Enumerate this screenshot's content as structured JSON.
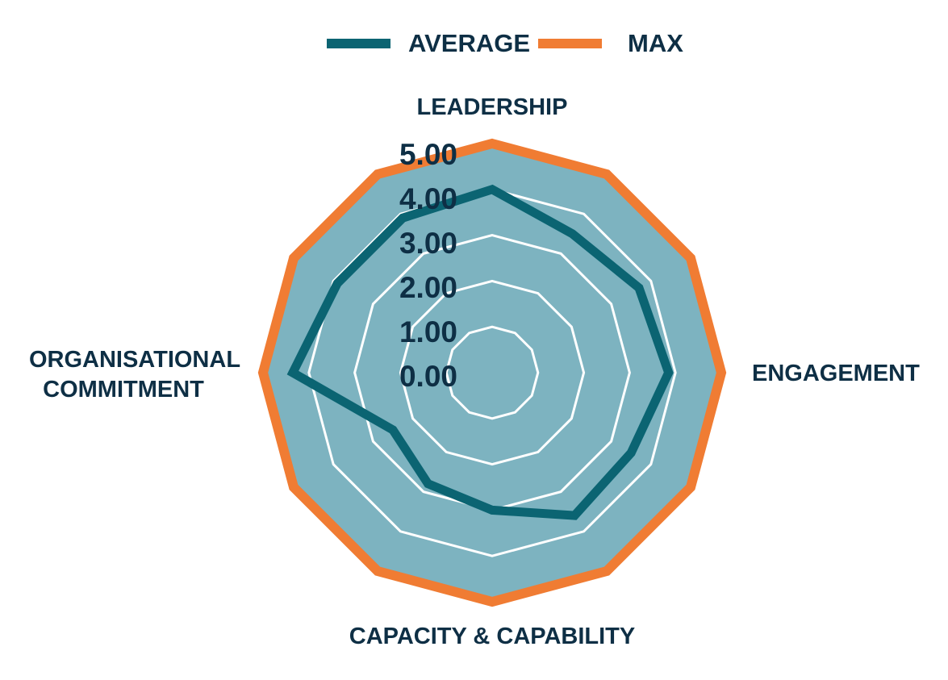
{
  "chart_data": {
    "type": "radar",
    "title": "",
    "axes": [
      "LEADERSHIP",
      "",
      "",
      "ENGAGEMENT",
      "",
      "",
      "CAPACITY & CAPABILITY",
      "",
      "",
      "ORGANISATIONAL COMMITMENT",
      "",
      ""
    ],
    "ticks": [
      "0.00",
      "1.00",
      "2.00",
      "3.00",
      "4.00",
      "5.00"
    ],
    "rlim": [
      0,
      5
    ],
    "grid": true,
    "legend_position": "top",
    "series": [
      {
        "name": "AVERAGE",
        "color": "#0b6472",
        "values": [
          4.0,
          3.5,
          3.7,
          3.85,
          3.5,
          3.6,
          3.0,
          2.8,
          2.5,
          4.35,
          3.9,
          3.9
        ]
      },
      {
        "name": "MAX",
        "color": "#f07c33",
        "fill": "#7db3c0",
        "values": [
          5,
          5,
          5,
          5,
          5,
          5,
          5,
          5,
          5,
          5,
          5,
          5
        ]
      }
    ]
  }
}
